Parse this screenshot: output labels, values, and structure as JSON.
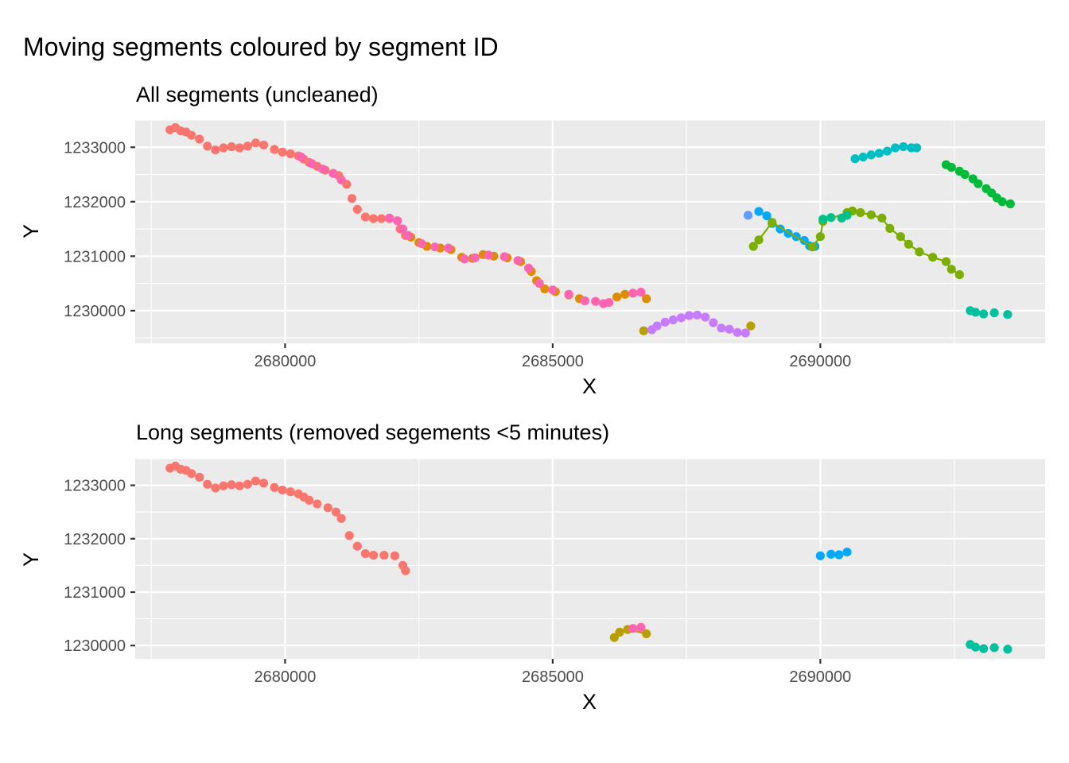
{
  "figure_title": "Moving segments coloured by segment ID",
  "chart_data": [
    {
      "type": "scatter",
      "title": "All segments (uncleaned)",
      "xlabel": "X",
      "ylabel": "Y",
      "xlim": [
        2677200,
        2694200
      ],
      "ylim": [
        1229400,
        1233500
      ],
      "xticks": [
        2680000,
        2685000,
        2690000
      ],
      "xtick_labels": [
        "2680000",
        "2685000",
        "2690000"
      ],
      "yticks": [
        1230000,
        1231000,
        1232000,
        1233000
      ],
      "ytick_labels": [
        "1230000",
        "1231000",
        "1232000",
        "1233000"
      ],
      "grid": true,
      "legend": "none",
      "series": [
        {
          "color": "#F8766D",
          "connected": false,
          "points": [
            [
              2677850,
              1233320
            ],
            [
              2677950,
              1233360
            ],
            [
              2678050,
              1233300
            ],
            [
              2678150,
              1233280
            ],
            [
              2678250,
              1233220
            ],
            [
              2678400,
              1233150
            ],
            [
              2678550,
              1233020
            ],
            [
              2678700,
              1232950
            ],
            [
              2678850,
              1232990
            ],
            [
              2679000,
              1233010
            ],
            [
              2679150,
              1232990
            ],
            [
              2679300,
              1233020
            ],
            [
              2679450,
              1233080
            ],
            [
              2679600,
              1233040
            ],
            [
              2679800,
              1232960
            ],
            [
              2679950,
              1232910
            ],
            [
              2680100,
              1232880
            ],
            [
              2680250,
              1232840
            ],
            [
              2680350,
              1232780
            ],
            [
              2680450,
              1232720
            ],
            [
              2680600,
              1232650
            ],
            [
              2680750,
              1232580
            ],
            [
              2680900,
              1232520
            ],
            [
              2681000,
              1232480
            ],
            [
              2681050,
              1232400
            ],
            [
              2681150,
              1232320
            ],
            [
              2681250,
              1232060
            ],
            [
              2681350,
              1231860
            ],
            [
              2681500,
              1231720
            ],
            [
              2681650,
              1231690
            ],
            [
              2681800,
              1231690
            ],
            [
              2681950,
              1231690
            ],
            [
              2682100,
              1231650
            ],
            [
              2682150,
              1231500
            ],
            [
              2682250,
              1231380
            ]
          ]
        },
        {
          "color": "#DE8C00",
          "connected": false,
          "points": [
            [
              2682350,
              1231350
            ],
            [
              2682500,
              1231250
            ],
            [
              2682650,
              1231180
            ],
            [
              2682900,
              1231150
            ],
            [
              2683100,
              1231120
            ],
            [
              2683300,
              1230980
            ],
            [
              2683500,
              1230960
            ],
            [
              2683700,
              1231030
            ],
            [
              2683900,
              1231000
            ],
            [
              2684150,
              1230970
            ],
            [
              2684400,
              1230900
            ],
            [
              2684600,
              1230720
            ],
            [
              2684700,
              1230550
            ],
            [
              2684850,
              1230400
            ],
            [
              2685050,
              1230350
            ],
            [
              2685300,
              1230290
            ],
            [
              2685500,
              1230220
            ],
            [
              2686200,
              1230250
            ],
            [
              2686350,
              1230300
            ],
            [
              2686750,
              1230220
            ]
          ]
        },
        {
          "color": "#FF64B0",
          "connected": false,
          "points": [
            [
              2680300,
              1232820
            ],
            [
              2680500,
              1232700
            ],
            [
              2680700,
              1232600
            ],
            [
              2680900,
              1232520
            ],
            [
              2681050,
              1232400
            ],
            [
              2681950,
              1231700
            ],
            [
              2682100,
              1231650
            ],
            [
              2682200,
              1231500
            ],
            [
              2682300,
              1231380
            ],
            [
              2682550,
              1231230
            ],
            [
              2682800,
              1231170
            ],
            [
              2683050,
              1231150
            ],
            [
              2683350,
              1230950
            ],
            [
              2683550,
              1230970
            ],
            [
              2683800,
              1231020
            ],
            [
              2684100,
              1230990
            ],
            [
              2684350,
              1230920
            ],
            [
              2684550,
              1230780
            ],
            [
              2684750,
              1230500
            ],
            [
              2685000,
              1230380
            ],
            [
              2685300,
              1230300
            ],
            [
              2685600,
              1230180
            ],
            [
              2685800,
              1230170
            ],
            [
              2685950,
              1230130
            ],
            [
              2686050,
              1230150
            ],
            [
              2686500,
              1230320
            ],
            [
              2686650,
              1230340
            ]
          ]
        },
        {
          "color": "#B79F00",
          "connected": false,
          "points": [
            [
              2686700,
              1229630
            ],
            [
              2688700,
              1229720
            ]
          ]
        },
        {
          "color": "#C77CFF",
          "connected": false,
          "points": [
            [
              2686850,
              1229650
            ],
            [
              2686950,
              1229720
            ],
            [
              2687100,
              1229790
            ],
            [
              2687250,
              1229830
            ],
            [
              2687400,
              1229870
            ],
            [
              2687550,
              1229910
            ],
            [
              2687700,
              1229920
            ],
            [
              2687850,
              1229880
            ],
            [
              2688000,
              1229780
            ],
            [
              2688150,
              1229680
            ],
            [
              2688300,
              1229660
            ],
            [
              2688450,
              1229600
            ],
            [
              2688600,
              1229590
            ]
          ]
        },
        {
          "color": "#619CFF",
          "connected": false,
          "points": [
            [
              2688650,
              1231750
            ]
          ]
        },
        {
          "color": "#00A9FF",
          "connected": true,
          "points": [
            [
              2688850,
              1231820
            ],
            [
              2689000,
              1231740
            ],
            [
              2689100,
              1231600
            ],
            [
              2689250,
              1231500
            ],
            [
              2689400,
              1231420
            ],
            [
              2689550,
              1231360
            ],
            [
              2689700,
              1231290
            ],
            [
              2689800,
              1231190
            ],
            [
              2689900,
              1231180
            ]
          ]
        },
        {
          "color": "#7CAE00",
          "connected": true,
          "points": [
            [
              2688750,
              1231180
            ],
            [
              2688850,
              1231300
            ],
            [
              2689100,
              1231620
            ],
            [
              2689850,
              1231170
            ],
            [
              2690000,
              1231360
            ],
            [
              2690050,
              1231640
            ],
            [
              2690500,
              1231800
            ],
            [
              2690600,
              1231830
            ],
            [
              2690750,
              1231800
            ],
            [
              2690950,
              1231760
            ],
            [
              2691150,
              1231700
            ],
            [
              2691300,
              1231510
            ],
            [
              2691500,
              1231360
            ],
            [
              2691650,
              1231220
            ],
            [
              2691850,
              1231080
            ],
            [
              2692100,
              1230980
            ],
            [
              2692350,
              1230900
            ],
            [
              2692450,
              1230760
            ],
            [
              2692600,
              1230660
            ]
          ]
        },
        {
          "color": "#00C08B",
          "connected": false,
          "points": [
            [
              2690050,
              1231680
            ],
            [
              2690200,
              1231710
            ],
            [
              2690400,
              1231700
            ],
            [
              2690500,
              1231750
            ]
          ]
        },
        {
          "color": "#00BFC4",
          "connected": false,
          "points": [
            [
              2690650,
              1232790
            ],
            [
              2690800,
              1232820
            ],
            [
              2690950,
              1232860
            ],
            [
              2691100,
              1232890
            ],
            [
              2691250,
              1232930
            ],
            [
              2691400,
              1232990
            ],
            [
              2691550,
              1233010
            ],
            [
              2691700,
              1232990
            ],
            [
              2691800,
              1232990
            ]
          ]
        },
        {
          "color": "#00BA38",
          "connected": false,
          "points": [
            [
              2692350,
              1232680
            ],
            [
              2692450,
              1232630
            ],
            [
              2692600,
              1232560
            ],
            [
              2692700,
              1232500
            ],
            [
              2692850,
              1232420
            ],
            [
              2692950,
              1232330
            ],
            [
              2693100,
              1232240
            ],
            [
              2693200,
              1232160
            ],
            [
              2693300,
              1232070
            ],
            [
              2693400,
              1232000
            ],
            [
              2693550,
              1231960
            ]
          ]
        },
        {
          "color": "#00C19F",
          "connected": false,
          "points": [
            [
              2692800,
              1230000
            ],
            [
              2692900,
              1229970
            ],
            [
              2693050,
              1229940
            ],
            [
              2693250,
              1229960
            ],
            [
              2693500,
              1229930
            ]
          ]
        }
      ]
    },
    {
      "type": "scatter",
      "title": "Long segments (removed segements <5 minutes)",
      "xlabel": "X",
      "ylabel": "Y",
      "xlim": [
        2677200,
        2694200
      ],
      "ylim": [
        1229750,
        1233500
      ],
      "xticks": [
        2680000,
        2685000,
        2690000
      ],
      "xtick_labels": [
        "2680000",
        "2685000",
        "2690000"
      ],
      "yticks": [
        1230000,
        1231000,
        1232000,
        1233000
      ],
      "ytick_labels": [
        "1230000",
        "1231000",
        "1232000",
        "1233000"
      ],
      "grid": true,
      "legend": "none",
      "series": [
        {
          "color": "#F8766D",
          "connected": false,
          "points": [
            [
              2677850,
              1233320
            ],
            [
              2677950,
              1233360
            ],
            [
              2678050,
              1233300
            ],
            [
              2678150,
              1233280
            ],
            [
              2678250,
              1233220
            ],
            [
              2678400,
              1233150
            ],
            [
              2678550,
              1233020
            ],
            [
              2678700,
              1232950
            ],
            [
              2678850,
              1232990
            ],
            [
              2679000,
              1233010
            ],
            [
              2679150,
              1232990
            ],
            [
              2679300,
              1233020
            ],
            [
              2679450,
              1233080
            ],
            [
              2679600,
              1233040
            ],
            [
              2679800,
              1232960
            ],
            [
              2679950,
              1232910
            ],
            [
              2680100,
              1232880
            ],
            [
              2680250,
              1232840
            ],
            [
              2680350,
              1232780
            ],
            [
              2680450,
              1232720
            ],
            [
              2680600,
              1232650
            ],
            [
              2680800,
              1232580
            ],
            [
              2680950,
              1232500
            ],
            [
              2681050,
              1232380
            ],
            [
              2681200,
              1232060
            ],
            [
              2681350,
              1231860
            ],
            [
              2681500,
              1231720
            ],
            [
              2681650,
              1231690
            ],
            [
              2681850,
              1231690
            ],
            [
              2682050,
              1231680
            ],
            [
              2682200,
              1231500
            ],
            [
              2682250,
              1231400
            ]
          ]
        },
        {
          "color": "#B79F00",
          "connected": true,
          "points": [
            [
              2686150,
              1230150
            ],
            [
              2686250,
              1230250
            ],
            [
              2686400,
              1230300
            ],
            [
              2686750,
              1230220
            ]
          ]
        },
        {
          "color": "#FF64B0",
          "connected": false,
          "points": [
            [
              2686500,
              1230320
            ],
            [
              2686650,
              1230340
            ]
          ]
        },
        {
          "color": "#00A9FF",
          "connected": false,
          "points": [
            [
              2690000,
              1231680
            ],
            [
              2690200,
              1231710
            ],
            [
              2690350,
              1231700
            ],
            [
              2690500,
              1231750
            ]
          ]
        },
        {
          "color": "#00C19F",
          "connected": false,
          "points": [
            [
              2692800,
              1230020
            ],
            [
              2692900,
              1229970
            ],
            [
              2693050,
              1229940
            ],
            [
              2693250,
              1229960
            ],
            [
              2693500,
              1229930
            ]
          ]
        }
      ]
    }
  ]
}
